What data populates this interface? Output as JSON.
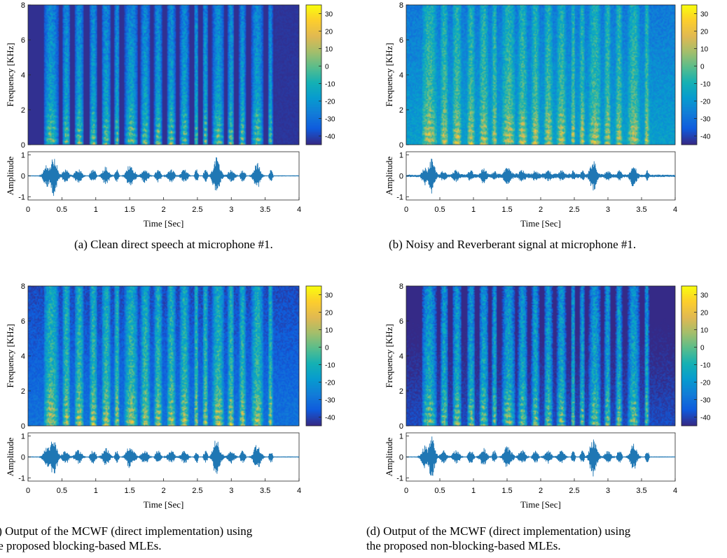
{
  "colors": {
    "frame": "#262626",
    "signal": "#1f77b4",
    "background": "#ffffff"
  },
  "colormap": "parula",
  "colorbar_ticks": [
    30,
    20,
    10,
    0,
    -10,
    -20,
    -30,
    -40
  ],
  "colorbar_range": [
    -45,
    35
  ],
  "spec_axis": {
    "ylabel": "Frequency [KHz]",
    "yticks": [
      0,
      2,
      4,
      6,
      8
    ],
    "ylim": [
      0,
      8
    ]
  },
  "wave_axis": {
    "ylabel": "Amplitude",
    "yticks": [
      -1,
      0,
      1
    ],
    "ylim": [
      -1.15,
      1.15
    ]
  },
  "time_axis": {
    "xlabel": "Time [Sec]",
    "xticks": [
      "0",
      "0.5",
      "1",
      "1.5",
      "2",
      "2.5",
      "3",
      "3.5",
      "4"
    ],
    "xlim": [
      0,
      4
    ]
  },
  "chart_data": [
    {
      "type": "heatmap",
      "panel": "a",
      "caption": "(a) Clean direct speech at microphone #1.",
      "x_range": [
        0,
        4
      ],
      "y_range": [
        0,
        8
      ],
      "value_range": [
        -45,
        35
      ],
      "waveform": {
        "type": "line",
        "xlim": [
          0,
          4
        ],
        "ylim": [
          -1.15,
          1.15
        ],
        "peak_amplitude": 1
      }
    },
    {
      "type": "heatmap",
      "panel": "b",
      "caption": "(b) Noisy and Reverberant signal at microphone #1.",
      "x_range": [
        0,
        4
      ],
      "y_range": [
        0,
        8
      ],
      "value_range": [
        -45,
        35
      ],
      "waveform": {
        "type": "line",
        "xlim": [
          0,
          4
        ],
        "ylim": [
          -1.15,
          1.15
        ],
        "peak_amplitude": 1
      }
    },
    {
      "type": "heatmap",
      "panel": "c",
      "caption": "(c) Output of the MCWF (direct implementation) using the proposed blocking-based MLEs.",
      "x_range": [
        0,
        4
      ],
      "y_range": [
        0,
        8
      ],
      "value_range": [
        -45,
        35
      ],
      "waveform": {
        "type": "line",
        "xlim": [
          0,
          4
        ],
        "ylim": [
          -1.15,
          1.15
        ],
        "peak_amplitude": 1
      }
    },
    {
      "type": "heatmap",
      "panel": "d",
      "caption": "(d) Output of the MCWF (direct implementation) using the proposed non-blocking-based MLEs.",
      "x_range": [
        0,
        4
      ],
      "y_range": [
        0,
        8
      ],
      "value_range": [
        -45,
        35
      ],
      "waveform": {
        "type": "line",
        "xlim": [
          0,
          4
        ],
        "ylim": [
          -1.15,
          1.15
        ],
        "peak_amplitude": 1
      }
    }
  ],
  "captions": {
    "a": "(a) Clean direct speech at microphone #1.",
    "b": "(b) Noisy and Reverberant signal at microphone #1.",
    "c_line1": "(c) Output of the MCWF (direct implementation) using",
    "c_line2": "the proposed blocking-based MLEs.",
    "d_line1": "(d) Output of the MCWF (direct implementation) using",
    "d_line2": "the proposed non-blocking-based MLEs."
  }
}
